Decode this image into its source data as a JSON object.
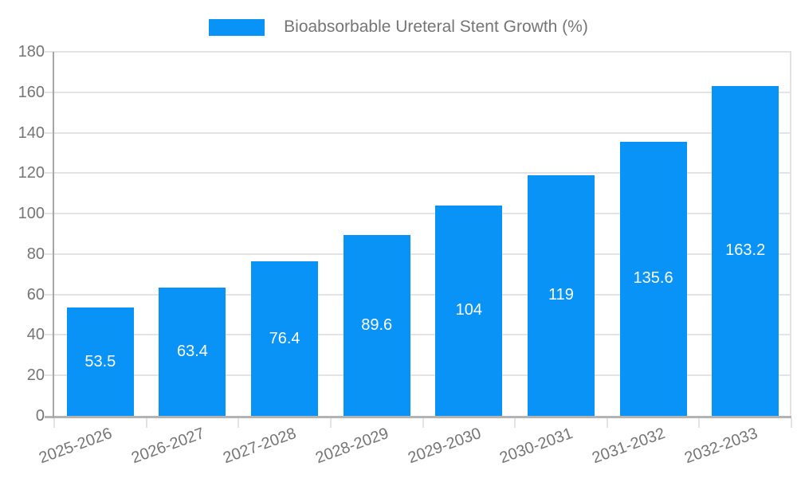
{
  "chart_data": {
    "type": "bar",
    "series_name": "Bioabsorbable Ureteral Stent Growth (%)",
    "categories": [
      "2025-2026",
      "2026-2027",
      "2027-2028",
      "2028-2029",
      "2029-2030",
      "2030-2031",
      "2031-2032",
      "2032-2033"
    ],
    "values": [
      53.5,
      63.4,
      76.4,
      89.6,
      104,
      119,
      135.6,
      163.2
    ],
    "value_labels": [
      "53.5",
      "63.4",
      "76.4",
      "89.6",
      "104",
      "119",
      "135.6",
      "163.2"
    ],
    "ylabel": "",
    "xlabel": "",
    "ylim": [
      0,
      180
    ],
    "ytick_interval": 20,
    "yticks": [
      0,
      20,
      40,
      60,
      80,
      100,
      120,
      140,
      160,
      180
    ],
    "grid": true,
    "legend_position": "top-center",
    "x_label_rotation_deg": -20,
    "colors": {
      "bar": "#0a93f7",
      "value_label": "#ffffff",
      "axis_text": "#757575",
      "y_axis_line": "#a6a6a6",
      "x_axis_line": "#b3b3b3",
      "grid_line": "#e3e3e3",
      "background": "#ffffff"
    }
  }
}
